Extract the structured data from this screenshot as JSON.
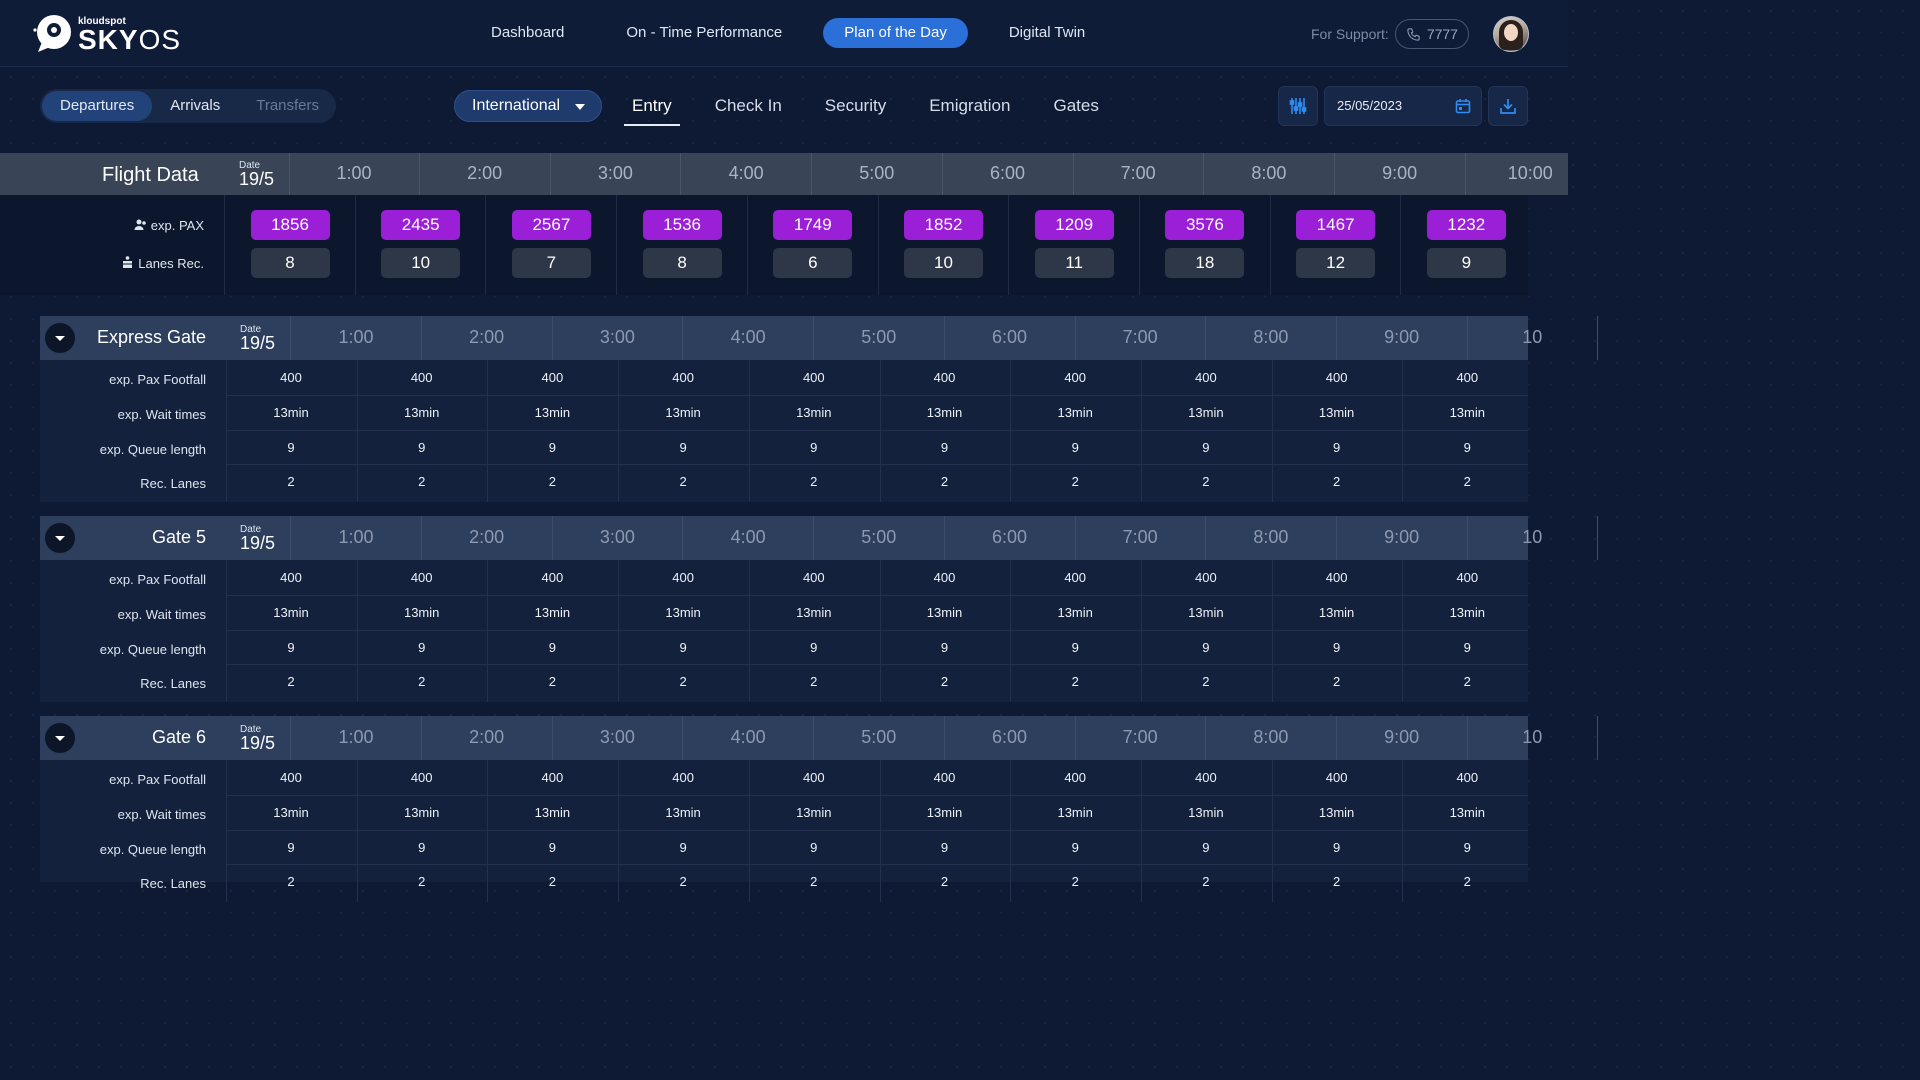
{
  "brand": {
    "small": "kloudspot",
    "name_bold": "SKY",
    "name_light": "OS"
  },
  "nav": [
    "Dashboard",
    "On - Time Performance",
    "Plan of the Day",
    "Digital Twin"
  ],
  "nav_active": "Plan of the Day",
  "support": {
    "label": "For Support:",
    "phone": "7777"
  },
  "direction_tabs": [
    "Departures",
    "Arrivals",
    "Transfers"
  ],
  "scope_dropdown": "International",
  "stage_tabs": [
    "Entry",
    "Check In",
    "Security",
    "Emigration",
    "Gates"
  ],
  "stage_active": "Entry",
  "date_value": "25/05/2023",
  "icons": {
    "filter": "sliders-icon",
    "calendar": "calendar-icon",
    "download": "download-icon",
    "phone": "phone-icon",
    "collapse": "chevron-down-icon",
    "pax": "people-icon",
    "lanes": "lanes-icon"
  },
  "colors": {
    "accent": "#2b6fd8",
    "pax_pill": "#9a1fd6",
    "background": "#0e1a33"
  },
  "flight_data": {
    "title": "Flight Data",
    "date_label": "Date",
    "date": "19/5",
    "hours": [
      "1:00",
      "2:00",
      "3:00",
      "4:00",
      "5:00",
      "6:00",
      "7:00",
      "8:00",
      "9:00",
      "10:00"
    ],
    "pax_label": "exp. PAX",
    "lanes_label": "Lanes Rec.",
    "pax": [
      "1856",
      "2435",
      "2567",
      "1536",
      "1749",
      "1852",
      "1209",
      "3576",
      "1467",
      "1232"
    ],
    "lanes": [
      "8",
      "10",
      "7",
      "8",
      "6",
      "10",
      "11",
      "18",
      "12",
      "9"
    ]
  },
  "gates": [
    {
      "name": "Express Gate",
      "date_label": "Date",
      "date": "19/5",
      "hours": [
        "1:00",
        "2:00",
        "3:00",
        "4:00",
        "5:00",
        "6:00",
        "7:00",
        "8:00",
        "9:00",
        "10"
      ],
      "rows": [
        {
          "label": "exp. Pax Footfall",
          "values": [
            "400",
            "400",
            "400",
            "400",
            "400",
            "400",
            "400",
            "400",
            "400",
            "400"
          ]
        },
        {
          "label": "exp. Wait times",
          "values": [
            "13min",
            "13min",
            "13min",
            "13min",
            "13min",
            "13min",
            "13min",
            "13min",
            "13min",
            "13min"
          ]
        },
        {
          "label": "exp. Queue length",
          "values": [
            "9",
            "9",
            "9",
            "9",
            "9",
            "9",
            "9",
            "9",
            "9",
            "9"
          ]
        },
        {
          "label": "Rec. Lanes",
          "values": [
            "2",
            "2",
            "2",
            "2",
            "2",
            "2",
            "2",
            "2",
            "2",
            "2"
          ]
        }
      ]
    },
    {
      "name": "Gate 5",
      "date_label": "Date",
      "date": "19/5",
      "hours": [
        "1:00",
        "2:00",
        "3:00",
        "4:00",
        "5:00",
        "6:00",
        "7:00",
        "8:00",
        "9:00",
        "10"
      ],
      "rows": [
        {
          "label": "exp. Pax Footfall",
          "values": [
            "400",
            "400",
            "400",
            "400",
            "400",
            "400",
            "400",
            "400",
            "400",
            "400"
          ]
        },
        {
          "label": "exp. Wait times",
          "values": [
            "13min",
            "13min",
            "13min",
            "13min",
            "13min",
            "13min",
            "13min",
            "13min",
            "13min",
            "13min"
          ]
        },
        {
          "label": "exp. Queue length",
          "values": [
            "9",
            "9",
            "9",
            "9",
            "9",
            "9",
            "9",
            "9",
            "9",
            "9"
          ]
        },
        {
          "label": "Rec. Lanes",
          "values": [
            "2",
            "2",
            "2",
            "2",
            "2",
            "2",
            "2",
            "2",
            "2",
            "2"
          ]
        }
      ]
    },
    {
      "name": "Gate 6",
      "date_label": "Date",
      "date": "19/5",
      "hours": [
        "1:00",
        "2:00",
        "3:00",
        "4:00",
        "5:00",
        "6:00",
        "7:00",
        "8:00",
        "9:00",
        "10"
      ],
      "rows": [
        {
          "label": "exp. Pax Footfall",
          "values": [
            "400",
            "400",
            "400",
            "400",
            "400",
            "400",
            "400",
            "400",
            "400",
            "400"
          ]
        },
        {
          "label": "exp. Wait times",
          "values": [
            "13min",
            "13min",
            "13min",
            "13min",
            "13min",
            "13min",
            "13min",
            "13min",
            "13min",
            "13min"
          ]
        },
        {
          "label": "exp. Queue length",
          "values": [
            "9",
            "9",
            "9",
            "9",
            "9",
            "9",
            "9",
            "9",
            "9",
            "9"
          ]
        },
        {
          "label": "Rec. Lanes",
          "values": [
            "2",
            "2",
            "2",
            "2",
            "2",
            "2",
            "2",
            "2",
            "2",
            "2"
          ]
        }
      ]
    }
  ]
}
